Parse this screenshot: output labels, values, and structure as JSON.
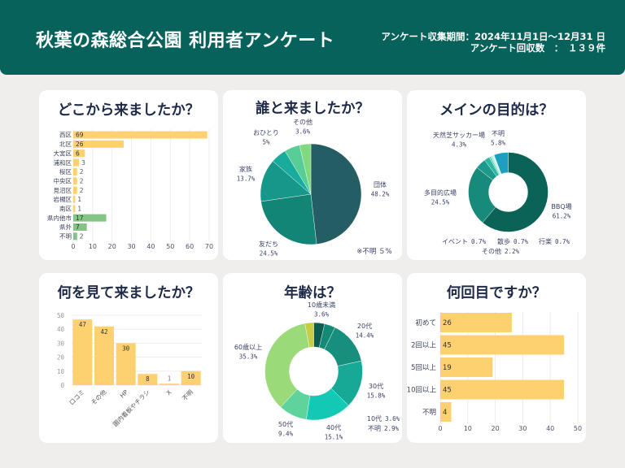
{
  "header": {
    "title": "秋葉の森総合公園 利用者アンケート",
    "period": "アンケート収集期間：2024年11月1日〜12月31 日",
    "responses": "アンケート回収数　：　１３９件"
  },
  "theme": {
    "header_bg": "#06625a",
    "page_bg": "#efeeec",
    "title_color": "#1f2a48",
    "label_color": "#3b4166",
    "bar_yellow": "#fdd070",
    "bar_green": "#86c485"
  },
  "chart_data": [
    {
      "type": "bar",
      "orientation": "horizontal",
      "title": "どこから来ましたか？",
      "categories": [
        "西区",
        "北区",
        "大宮区",
        "浦和区",
        "桜区",
        "中央区",
        "見沼区",
        "岩槻区",
        "南区",
        "県内他市",
        "県外",
        "不明"
      ],
      "values": [
        69,
        26,
        6,
        3,
        2,
        2,
        2,
        1,
        1,
        17,
        7,
        2
      ],
      "colors": [
        "#fdd070",
        "#fdd070",
        "#fdd070",
        "#fdd070",
        "#fdd070",
        "#fdd070",
        "#fdd070",
        "#fdd070",
        "#fdd070",
        "#86c485",
        "#86c485",
        "#86c485"
      ],
      "xlim": [
        0,
        70
      ],
      "x_ticks": [
        "0",
        "10",
        "20",
        "30",
        "40",
        "50",
        "60",
        "70"
      ],
      "xlabel": "",
      "ylabel": "",
      "grid": true
    },
    {
      "type": "pie",
      "title": "誰と来ましたか？",
      "slices": [
        {
          "label": "団体",
          "value": 48.2,
          "pct": "48.2%",
          "color": "#245e64"
        },
        {
          "label": "友だち",
          "value": 24.5,
          "pct": "24.5%",
          "color": "#138577"
        },
        {
          "label": "家族",
          "value": 13.7,
          "pct": "13.7%",
          "color": "#17968a"
        },
        {
          "label": "不明",
          "value": 5,
          "pct": "5%",
          "color": "#19ab9b"
        },
        {
          "label": "おひとり",
          "value": 5,
          "pct": "5%",
          "color": "#58cd97"
        },
        {
          "label": "その他",
          "value": 3.6,
          "pct": "3.6%",
          "color": "#80d97f"
        }
      ],
      "note": "※不明 ５%"
    },
    {
      "type": "pie",
      "variant": "donut",
      "title": "メインの目的は？",
      "slices": [
        {
          "label": "BBQ場",
          "value": 61.2,
          "pct": "61.2%",
          "color": "#0b6256"
        },
        {
          "label": "多目的広場",
          "value": 24.5,
          "pct": "24.5%",
          "color": "#178a7b"
        },
        {
          "label": "天然芝サッカー場",
          "value": 4.3,
          "pct": "4.3%",
          "color": "#1b9a8c"
        },
        {
          "label": "その他",
          "value": 2.2,
          "pct": "2.2%",
          "color": "#2fb5a3"
        },
        {
          "label": "イベント",
          "value": 0.7,
          "pct": "0.7%",
          "color": "#5dd3b4"
        },
        {
          "label": "散歩",
          "value": 0.7,
          "pct": "0.7%",
          "color": "#a6ead0"
        },
        {
          "label": "行楽",
          "value": 0.7,
          "pct": "0.7%",
          "color": "#d4f4e6"
        },
        {
          "label": "不明",
          "value": 5.8,
          "pct": "5.8%",
          "color": "#1e9fc2"
        }
      ]
    },
    {
      "type": "bar",
      "orientation": "vertical",
      "title": "何を見て来ましたか？",
      "categories": [
        "口コミ",
        "その他",
        "HP",
        "園内看板やチラシ",
        "X",
        "不明"
      ],
      "values": [
        47,
        42,
        30,
        8,
        1,
        10
      ],
      "color": "#fdd070",
      "ylim": [
        0,
        50
      ],
      "y_ticks": [
        "0",
        "10",
        "20",
        "30",
        "40",
        "50"
      ],
      "xlabel": "",
      "ylabel": "",
      "grid": true
    },
    {
      "type": "pie",
      "variant": "donut",
      "title": "年齢は？",
      "slices": [
        {
          "label": "10歳未満",
          "value": 3.6,
          "pct": "3.6%",
          "color": "#0b5e4f"
        },
        {
          "label": "10代",
          "value": 3.6,
          "pct": "3.6%",
          "color": "#138a77"
        },
        {
          "label": "20代",
          "value": 14.4,
          "pct": "14.4%",
          "color": "#178f7f"
        },
        {
          "label": "30代",
          "value": 15.8,
          "pct": "15.8%",
          "color": "#17a996"
        },
        {
          "label": "40代",
          "value": 15.1,
          "pct": "15.1%",
          "color": "#13c9b6"
        },
        {
          "label": "50代",
          "value": 9.4,
          "pct": "9.4%",
          "color": "#5fd39c"
        },
        {
          "label": "60歳以上",
          "value": 35.3,
          "pct": "35.3%",
          "color": "#9bda78"
        },
        {
          "label": "不明",
          "value": 2.9,
          "pct": "2.9%",
          "color": "#c6cd46"
        }
      ]
    },
    {
      "type": "bar",
      "orientation": "horizontal",
      "title": "何回目ですか？",
      "categories": [
        "初めて",
        "2回以上",
        "5回以上",
        "10回以上",
        "不明"
      ],
      "values": [
        26,
        45,
        19,
        45,
        4
      ],
      "colors": [
        "#fdd070",
        "#fdd070",
        "#fdd070",
        "#fdd070",
        "#fdd070"
      ],
      "xlim": [
        0,
        50
      ],
      "x_ticks": [
        "0",
        "10",
        "20",
        "30",
        "40",
        "50"
      ],
      "xlabel": "",
      "ylabel": "",
      "grid": true
    }
  ]
}
